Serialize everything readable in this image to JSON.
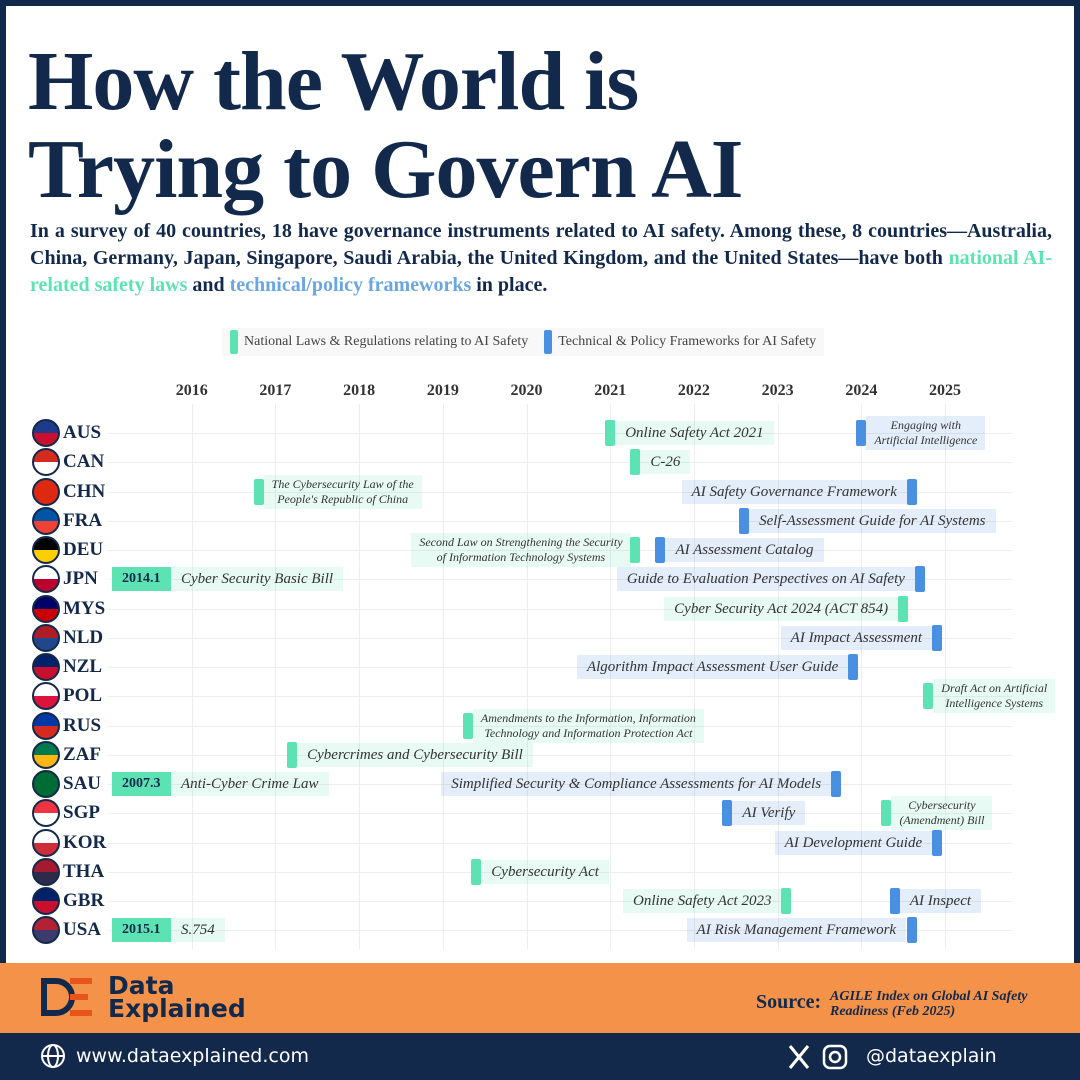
{
  "chart_data": {
    "type": "timeline",
    "title": "How the World is Trying to Govern AI",
    "subtitle": {
      "text_1": "In a survey of 40 countries, 18 have governance instruments related to AI safety. Among these, 8 countries—Australia, China, Germany, Japan, Singapore, Saudi Arabia, the United Kingdom, and the United States—have both ",
      "highlight_1": "national AI-related safety laws",
      "text_2": " and ",
      "highlight_2": "technical/policy frameworks",
      "text_3": " in place."
    },
    "legend": {
      "law": {
        "name": "National Laws & Regulations relating to AI Safety",
        "color": "#5de3b3"
      },
      "framework": {
        "name": "Technical & Policy Frameworks for AI Safety",
        "color": "#4a90e2"
      }
    },
    "xlim": [
      2015,
      2025.8
    ],
    "xticks": [
      2016,
      2017,
      2018,
      2019,
      2020,
      2021,
      2022,
      2023,
      2024,
      2025
    ],
    "grid": true,
    "countries": [
      {
        "code": "AUS",
        "flag": [
          "#1f3a8a",
          "#c8102e"
        ],
        "events": [
          {
            "kind": "law",
            "label": "Online Safety Act 2021",
            "date": 2021.0,
            "side": "right"
          },
          {
            "kind": "framework",
            "label": "Engaging with\nArtificial Intelligence",
            "date": 2024.0,
            "side": "right"
          }
        ]
      },
      {
        "code": "CAN",
        "flag": [
          "#d52b1e",
          "#ffffff"
        ],
        "events": [
          {
            "kind": "law",
            "label": "C-26",
            "date": 2021.3,
            "side": "right"
          }
        ]
      },
      {
        "code": "CHN",
        "flag": [
          "#de2910",
          "#de2910"
        ],
        "events": [
          {
            "kind": "law",
            "label": "The Cybersecurity Law of the\nPeople's Republic of China",
            "date": 2016.8,
            "side": "right"
          },
          {
            "kind": "framework",
            "label": "AI Safety Governance Framework",
            "date": 2024.6,
            "side": "left"
          }
        ]
      },
      {
        "code": "FRA",
        "flag": [
          "#0055a4",
          "#ef4135"
        ],
        "events": [
          {
            "kind": "framework",
            "label": "Self-Assessment Guide for AI Systems",
            "date": 2022.6,
            "side": "right"
          }
        ]
      },
      {
        "code": "DEU",
        "flag": [
          "#000000",
          "#ffce00"
        ],
        "events": [
          {
            "kind": "law",
            "label": "Second Law on Strengthening the Security\nof Information Technology Systems",
            "date": 2021.3,
            "side": "left"
          },
          {
            "kind": "framework",
            "label": "AI Assessment Catalog",
            "date": 2021.6,
            "side": "right"
          }
        ]
      },
      {
        "code": "JPN",
        "flag": [
          "#ffffff",
          "#bc002d"
        ],
        "events": [
          {
            "kind": "law",
            "label": "Cyber Security Basic Bill",
            "date_label": "2014.1",
            "side": "right"
          },
          {
            "kind": "framework",
            "label": "Guide to Evaluation Perspectives on AI Safety",
            "date": 2024.7,
            "side": "left"
          }
        ]
      },
      {
        "code": "MYS",
        "flag": [
          "#010066",
          "#cc0001"
        ],
        "events": [
          {
            "kind": "law",
            "label": "Cyber Security Act 2024 (ACT 854)",
            "date": 2024.5,
            "side": "left"
          }
        ]
      },
      {
        "code": "NLD",
        "flag": [
          "#ae1c28",
          "#21468b"
        ],
        "events": [
          {
            "kind": "framework",
            "label": "AI Impact Assessment",
            "date": 2024.9,
            "side": "left"
          }
        ]
      },
      {
        "code": "NZL",
        "flag": [
          "#012169",
          "#c8102e"
        ],
        "events": [
          {
            "kind": "framework",
            "label": "Algorithm Impact Assessment User Guide",
            "date": 2023.9,
            "side": "left"
          }
        ]
      },
      {
        "code": "POL",
        "flag": [
          "#ffffff",
          "#dc143c"
        ],
        "events": [
          {
            "kind": "law",
            "label": "Draft Act on Artificial\nIntelligence Systems",
            "date": 2024.8,
            "side": "right"
          }
        ]
      },
      {
        "code": "RUS",
        "flag": [
          "#0039a6",
          "#d52b1e"
        ],
        "events": [
          {
            "kind": "law",
            "label": "Amendments to the Information, Information\nTechnology and Information Protection Act",
            "date": 2019.3,
            "side": "right"
          }
        ]
      },
      {
        "code": "ZAF",
        "flag": [
          "#007a4d",
          "#ffb612"
        ],
        "events": [
          {
            "kind": "law",
            "label": "Cybercrimes and Cybersecurity Bill",
            "date": 2017.2,
            "side": "right"
          }
        ]
      },
      {
        "code": "SAU",
        "flag": [
          "#006c35",
          "#006c35"
        ],
        "events": [
          {
            "kind": "law",
            "label": "Anti-Cyber Crime Law",
            "date_label": "2007.3",
            "side": "right"
          },
          {
            "kind": "framework",
            "label": "Simplified Security & Compliance Assessments for AI Models",
            "date": 2023.7,
            "side": "left"
          }
        ]
      },
      {
        "code": "SGP",
        "flag": [
          "#ef3340",
          "#ffffff"
        ],
        "events": [
          {
            "kind": "framework",
            "label": "AI Verify",
            "date": 2022.4,
            "side": "right"
          },
          {
            "kind": "law",
            "label": "Cybersecurity\n(Amendment) Bill",
            "date": 2024.3,
            "side": "right"
          }
        ]
      },
      {
        "code": "KOR",
        "flag": [
          "#ffffff",
          "#cd2e3a"
        ],
        "events": [
          {
            "kind": "framework",
            "label": "AI Development Guide",
            "date": 2024.9,
            "side": "left"
          }
        ]
      },
      {
        "code": "THA",
        "flag": [
          "#a51931",
          "#2d2a4a"
        ],
        "events": [
          {
            "kind": "law",
            "label": "Cybersecurity Act",
            "date": 2019.4,
            "side": "right"
          }
        ]
      },
      {
        "code": "GBR",
        "flag": [
          "#012169",
          "#c8102e"
        ],
        "events": [
          {
            "kind": "law",
            "label": "Online Safety Act 2023",
            "date": 2023.1,
            "side": "left"
          },
          {
            "kind": "framework",
            "label": "AI Inspect",
            "date": 2024.4,
            "side": "right"
          }
        ]
      },
      {
        "code": "USA",
        "flag": [
          "#b22234",
          "#3c3b6e"
        ],
        "events": [
          {
            "kind": "law",
            "label": "S.754",
            "date_label": "2015.1",
            "side": "right"
          },
          {
            "kind": "framework",
            "label": "AI Risk Management Framework",
            "date": 2024.6,
            "side": "left"
          }
        ]
      }
    ]
  },
  "footer": {
    "brand_1": "Data",
    "brand_2": "Explained",
    "source_label": "Source:",
    "source": "AGILE Index on Global AI Safety Readiness (Feb 2025)",
    "website": "www.dataexplained.com",
    "handle": "@dataexplain"
  }
}
